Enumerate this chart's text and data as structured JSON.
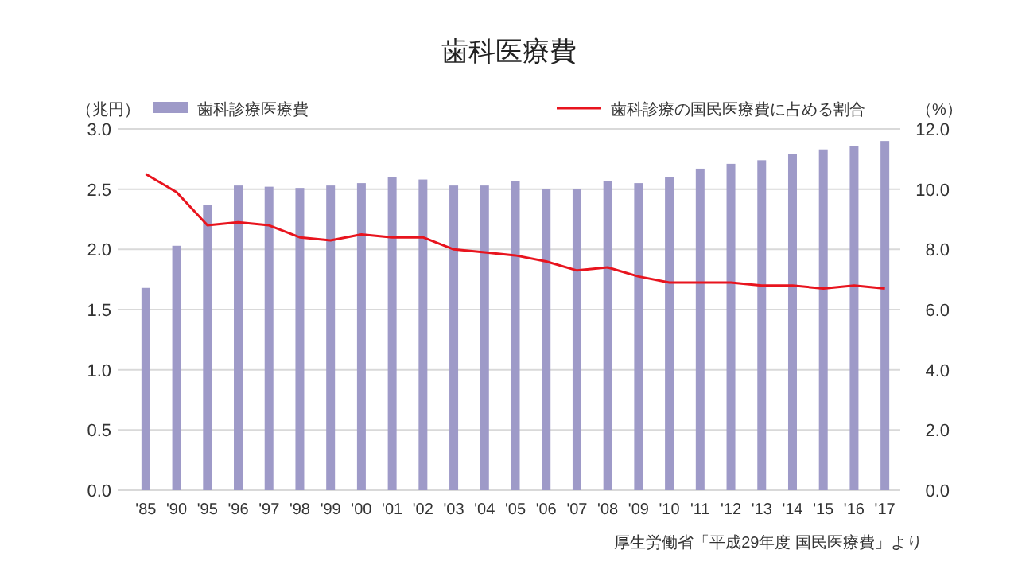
{
  "chart_data": {
    "type": "bar",
    "title": "歯科医療費",
    "ylabel": "（兆円）",
    "y2label": "（%）",
    "categories": [
      "'85",
      "'90",
      "'95",
      "'96",
      "'97",
      "'98",
      "'99",
      "'00",
      "'01",
      "'02",
      "'03",
      "'04",
      "'05",
      "'06",
      "'07",
      "'08",
      "'09",
      "'10",
      "'11",
      "'12",
      "'13",
      "'14",
      "'15",
      "'16",
      "'17"
    ],
    "series": [
      {
        "name": "歯科診療医療費",
        "color": "#9e9ac8",
        "values": [
          1.68,
          2.03,
          2.37,
          2.53,
          2.52,
          2.51,
          2.53,
          2.55,
          2.6,
          2.58,
          2.53,
          2.53,
          2.57,
          2.5,
          2.5,
          2.57,
          2.55,
          2.6,
          2.67,
          2.71,
          2.74,
          2.79,
          2.83,
          2.86,
          2.9
        ]
      },
      {
        "name": "歯科診療の国民医療費に占める割合",
        "type": "line",
        "axis": "y2",
        "color": "#e8141e",
        "values": [
          10.5,
          9.9,
          8.8,
          8.9,
          8.8,
          8.4,
          8.3,
          8.5,
          8.4,
          8.4,
          8.0,
          7.9,
          7.8,
          7.6,
          7.3,
          7.4,
          7.1,
          6.9,
          6.9,
          6.9,
          6.8,
          6.8,
          6.7,
          6.8,
          6.7
        ]
      }
    ],
    "ylim": [
      0,
      3
    ],
    "yticks": [
      {
        "value": 0,
        "label": "0.0"
      },
      {
        "value": 0.5,
        "label": "0.5"
      },
      {
        "value": 1,
        "label": "1.0"
      },
      {
        "value": 1.5,
        "label": "1.5"
      },
      {
        "value": 2,
        "label": "2.0"
      },
      {
        "value": 2.5,
        "label": "2.5"
      },
      {
        "value": 3,
        "label": "3.0"
      }
    ],
    "y2lim": [
      0,
      12
    ],
    "y2ticks": [
      {
        "value": 0,
        "label": "0.0"
      },
      {
        "value": 2,
        "label": "2.0"
      },
      {
        "value": 4,
        "label": "4.0"
      },
      {
        "value": 6,
        "label": "6.0"
      },
      {
        "value": 8,
        "label": "8.0"
      },
      {
        "value": 10,
        "label": "10.0"
      },
      {
        "value": 12,
        "label": "12.0"
      }
    ],
    "grid": "y",
    "legend": "top",
    "marker": "none",
    "line_style": "solid",
    "annotations": [
      "厚生労働省「平成29年度 国民医療費」より"
    ]
  }
}
